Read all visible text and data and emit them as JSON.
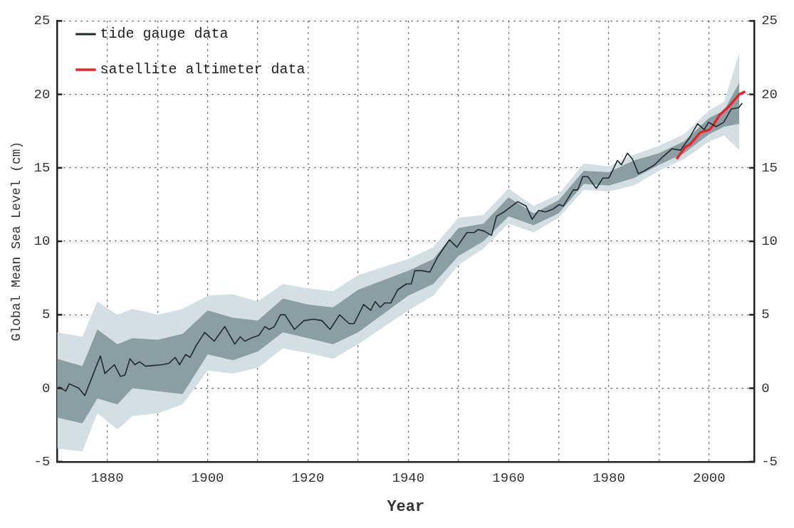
{
  "chart_data": {
    "type": "line",
    "xlabel": "Year",
    "ylabel": "Global Mean Sea Level (cm)",
    "xlim": [
      1870,
      2009
    ],
    "xticks": [
      1880,
      {
        "value": 1890,
        "label": null
      },
      1900,
      {
        "value": 1910,
        "label": null
      },
      1920,
      {
        "value": 1930,
        "label": null
      },
      1940,
      {
        "value": 1950,
        "label": null
      },
      1960,
      {
        "value": 1970,
        "label": null
      },
      1980,
      {
        "value": 1990,
        "label": null
      },
      2000
    ],
    "ylim": [
      -5,
      25
    ],
    "yticks": [
      -5,
      0,
      5,
      10,
      15,
      20,
      25
    ],
    "y2lim": [
      -5,
      25
    ],
    "y2ticks": [
      -5,
      0,
      5,
      10,
      15,
      20,
      25
    ],
    "grid": true,
    "legend": "top left",
    "marker": "none",
    "series": [
      {
        "name": "tide gauge data",
        "color": "#1f2a2e",
        "x": [
          1870.3,
          1871.7,
          1872.4,
          1874.3,
          1875.5,
          1878.6,
          1879.5,
          1881.4,
          1882.6,
          1883.5,
          1884.5,
          1885.5,
          1886.4,
          1887.6,
          1890.9,
          1892.3,
          1893.5,
          1894.4,
          1895.6,
          1896.5,
          1897.7,
          1899.4,
          1901.3,
          1903.4,
          1905.4,
          1906.5,
          1907.4,
          1908.6,
          1910.2,
          1911.4,
          1912.3,
          1913.3,
          1914.5,
          1915.4,
          1917.3,
          1919.2,
          1921.1,
          1922.8,
          1924.4,
          1926.3,
          1928.2,
          1929.2,
          1931.1,
          1932.5,
          1933.4,
          1934.4,
          1935.3,
          1936.5,
          1937.9,
          1939.6,
          1940.6,
          1941.3,
          1942.8,
          1944.3,
          1945.8,
          1948.2,
          1949.7,
          1951.7,
          1953.2,
          1953.9,
          1955.1,
          1956.6,
          1957.6,
          1959.1,
          1961.8,
          1963.5,
          1964.7,
          1966.0,
          1967.4,
          1968.9,
          1970.1,
          1970.9,
          1972.9,
          1973.8,
          1974.8,
          1975.8,
          1977.5,
          1978.8,
          1980.0,
          1981.7,
          1982.5,
          1983.7,
          1984.7,
          1985.9,
          1987.1,
          1989.1,
          1990.6,
          1992.6,
          1994.3,
          1996.0,
          1997.7,
          1999.0,
          1999.9,
          2001.4,
          2002.9,
          2004.4,
          2005.9,
          2006.6
        ],
        "values": [
          0.1,
          -0.2,
          0.3,
          0.0,
          -0.5,
          2.2,
          1.0,
          1.6,
          0.8,
          0.9,
          2.0,
          1.6,
          1.8,
          1.5,
          1.6,
          1.7,
          2.1,
          1.6,
          2.3,
          2.1,
          2.9,
          3.8,
          3.2,
          4.2,
          3.0,
          3.5,
          3.2,
          3.4,
          3.6,
          4.2,
          4.0,
          4.2,
          5.0,
          5.0,
          4.0,
          4.6,
          4.7,
          4.6,
          4.0,
          5.0,
          4.4,
          4.4,
          5.7,
          5.3,
          5.9,
          5.5,
          5.8,
          5.8,
          6.7,
          7.1,
          7.1,
          8.0,
          8.0,
          7.9,
          8.9,
          10.1,
          9.6,
          10.6,
          10.6,
          10.8,
          10.7,
          10.4,
          11.7,
          12.0,
          12.7,
          12.4,
          11.5,
          12.1,
          12.0,
          12.2,
          12.5,
          12.4,
          13.5,
          13.5,
          14.4,
          14.4,
          13.6,
          14.3,
          14.3,
          15.5,
          15.2,
          16.0,
          15.6,
          14.6,
          14.8,
          15.2,
          15.7,
          16.3,
          16.2,
          17.0,
          18.0,
          17.6,
          18.1,
          17.8,
          18.1,
          19.0,
          19.1,
          19.4
        ]
      },
      {
        "type": "area",
        "color": "#d3dfe2",
        "x": [
          1870,
          1875,
          1878,
          1882,
          1885,
          1890,
          1895,
          1900,
          1905,
          1910,
          1915,
          1920,
          1925,
          1930,
          1940,
          1945,
          1950,
          1955,
          1960,
          1965,
          1970,
          1975,
          1980,
          1985,
          1990,
          1995,
          2000,
          2003,
          2006
        ],
        "values": [
          null,
          null,
          null,
          null,
          null,
          null,
          null,
          null,
          null,
          null,
          null,
          null,
          null,
          null,
          null,
          null,
          null,
          null,
          null,
          null,
          null,
          null,
          null,
          null,
          null,
          null,
          null,
          null,
          null
        ],
        "upper": [
          3.8,
          3.5,
          5.9,
          5.0,
          5.4,
          5.0,
          5.4,
          6.3,
          6.4,
          5.9,
          7.1,
          6.8,
          6.6,
          7.7,
          8.8,
          9.6,
          11.6,
          11.8,
          13.6,
          12.4,
          13.2,
          15.3,
          15.1,
          15.9,
          16.5,
          17.3,
          18.9,
          19.5,
          22.8
        ],
        "lower": [
          -4.1,
          -4.3,
          -1.7,
          -2.8,
          -1.9,
          -1.7,
          -1.1,
          1.2,
          1.0,
          1.4,
          2.7,
          2.4,
          2.0,
          3.0,
          5.3,
          6.3,
          8.4,
          9.5,
          11.2,
          10.6,
          11.6,
          13.5,
          13.4,
          13.8,
          14.8,
          15.6,
          16.8,
          17.2,
          16.2
        ]
      },
      {
        "type": "area",
        "color": "#8a9ea3",
        "x": [
          1870,
          1875,
          1878,
          1882,
          1885,
          1890,
          1895,
          1900,
          1905,
          1910,
          1915,
          1920,
          1925,
          1930,
          1940,
          1945,
          1950,
          1955,
          1960,
          1965,
          1970,
          1975,
          1980,
          1985,
          1990,
          1995,
          2000,
          2003,
          2006
        ],
        "values": [
          null,
          null,
          null,
          null,
          null,
          null,
          null,
          null,
          null,
          null,
          null,
          null,
          null,
          null,
          null,
          null,
          null,
          null,
          null,
          null,
          null,
          null,
          null,
          null,
          null,
          null,
          null,
          null,
          null
        ],
        "upper": [
          2.0,
          1.5,
          4.0,
          3.0,
          3.4,
          3.3,
          3.7,
          5.3,
          4.8,
          4.6,
          6.1,
          5.7,
          5.5,
          6.7,
          8.0,
          8.8,
          10.9,
          11.2,
          13.0,
          11.9,
          12.8,
          14.8,
          14.7,
          15.5,
          16.0,
          16.8,
          18.4,
          18.9,
          20.8
        ],
        "lower": [
          -2.0,
          -2.4,
          -0.7,
          -1.1,
          0.0,
          -0.2,
          -0.4,
          2.3,
          1.9,
          2.5,
          3.8,
          3.4,
          3.0,
          3.8,
          6.3,
          7.1,
          9.0,
          10.0,
          11.7,
          11.1,
          11.9,
          13.9,
          13.8,
          14.3,
          15.2,
          16.0,
          17.3,
          17.8,
          18.0
        ]
      },
      {
        "name": "satellite altimeter data",
        "color": "#e8242a",
        "x": [
          1993.5,
          1995.2,
          1996.2,
          1998.2,
          2000.1,
          2000.8,
          2002.1,
          2004.0,
          2006.0,
          2007.2
        ],
        "values": [
          15.6,
          16.4,
          16.6,
          17.4,
          17.6,
          17.9,
          18.6,
          19.2,
          20.0,
          20.2
        ]
      }
    ]
  }
}
